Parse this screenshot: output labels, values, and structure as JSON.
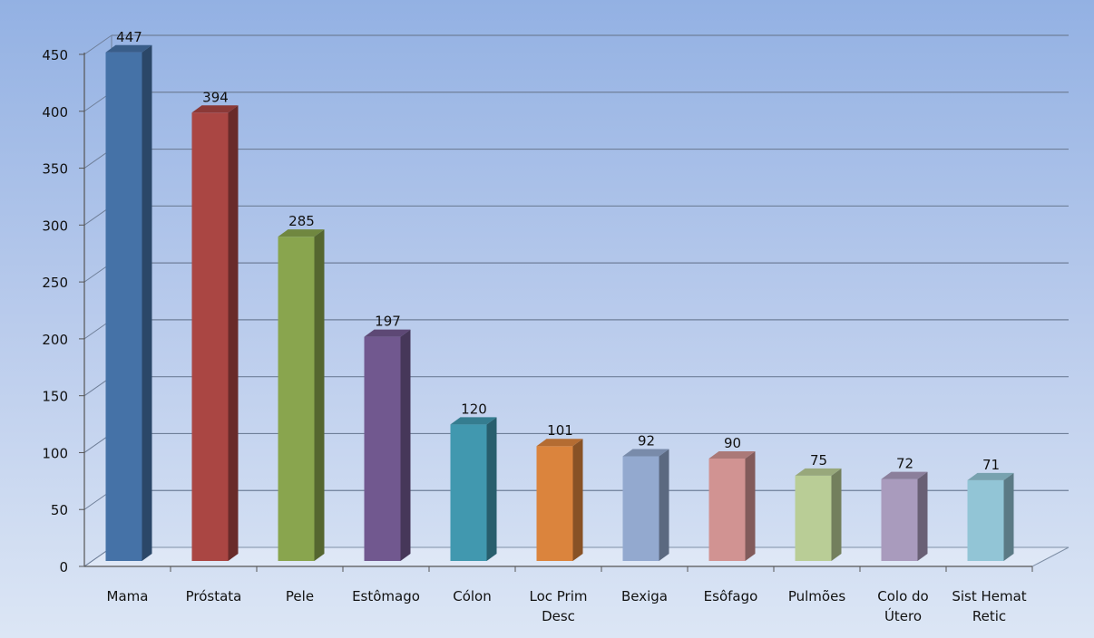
{
  "chart_data": {
    "type": "bar",
    "categories": [
      [
        "Mama"
      ],
      [
        "Próstata"
      ],
      [
        "Pele"
      ],
      [
        "Estômago"
      ],
      [
        "Cólon"
      ],
      [
        "Loc Prim",
        "Desc"
      ],
      [
        "Bexiga"
      ],
      [
        "Esôfago"
      ],
      [
        "Pulmões"
      ],
      [
        "Colo do",
        "Útero"
      ],
      [
        "Sist Hemat",
        "Retic"
      ]
    ],
    "values": [
      447,
      394,
      285,
      197,
      120,
      101,
      92,
      90,
      75,
      72,
      71
    ],
    "value_labels": [
      "447",
      "394",
      "285",
      "197",
      "120",
      "101",
      "92",
      "90",
      "75",
      "72",
      "71"
    ],
    "colors": [
      "#4572a7",
      "#aa4643",
      "#89a54e",
      "#71588f",
      "#4198af",
      "#db843d",
      "#93a9cf",
      "#d19392",
      "#b9cd96",
      "#a99bbd",
      "#92c5d6"
    ],
    "yticks": [
      "0",
      "50",
      "100",
      "150",
      "200",
      "250",
      "300",
      "350",
      "400",
      "450"
    ],
    "ylim": [
      0,
      450
    ],
    "grid": true,
    "title": "",
    "xlabel": "",
    "ylabel": ""
  }
}
